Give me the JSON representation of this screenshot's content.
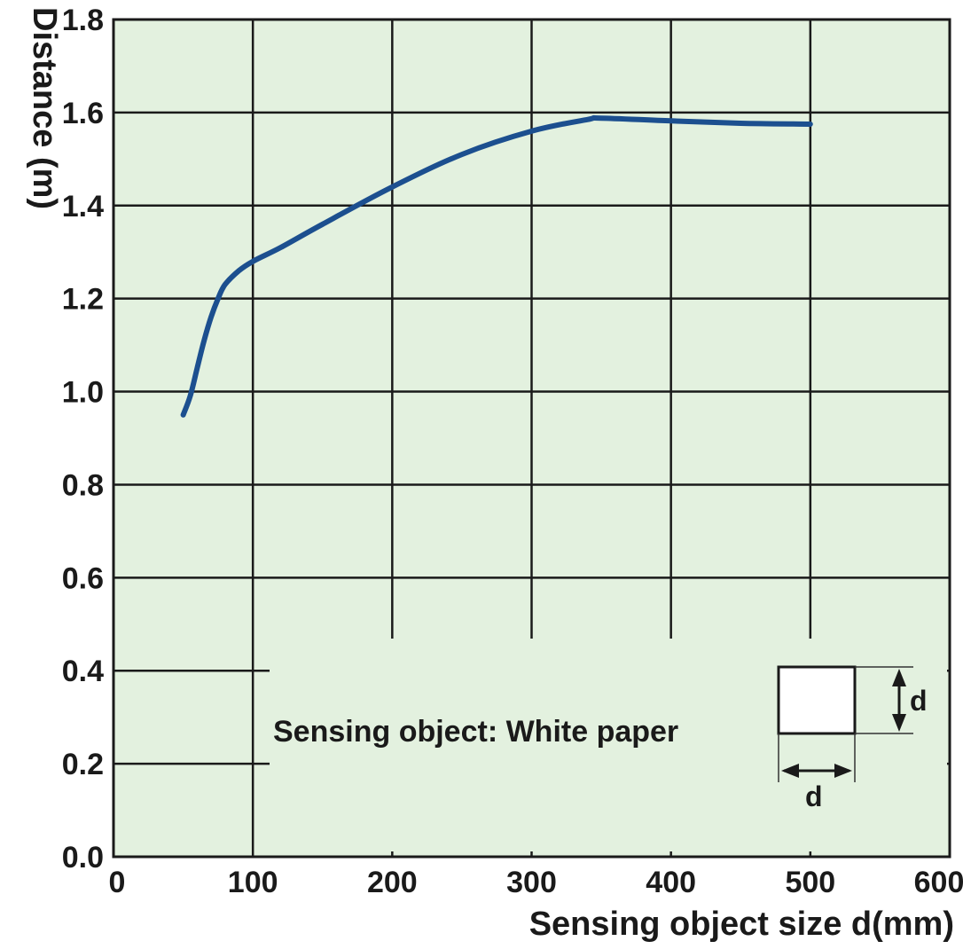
{
  "chart_data": {
    "type": "line",
    "xlabel": "Sensing object size d(mm)",
    "ylabel": "Distance (m)",
    "xlim": [
      0,
      600
    ],
    "ylim": [
      0,
      1.8
    ],
    "x_ticks": [
      "0",
      "100",
      "200",
      "300",
      "400",
      "500",
      "600"
    ],
    "y_ticks": [
      "0.0",
      "0.2",
      "0.4",
      "0.6",
      "0.8",
      "1.0",
      "1.2",
      "1.4",
      "1.6",
      "1.8"
    ],
    "grid": true,
    "background_color": "#e3f1df",
    "line_color": "#1c4f8f",
    "series": [
      {
        "x": [
          50,
          55,
          60,
          65,
          70,
          75,
          80,
          90,
          100,
          120,
          150,
          200,
          250,
          300,
          340,
          350,
          400,
          450,
          500
        ],
        "y": [
          0.95,
          0.99,
          1.05,
          1.11,
          1.16,
          1.2,
          1.23,
          1.26,
          1.28,
          1.31,
          1.36,
          1.44,
          1.51,
          1.56,
          1.585,
          1.588,
          1.582,
          1.577,
          1.575
        ]
      }
    ],
    "annotation": {
      "text": "Sensing object: White paper",
      "dimension_label": "d"
    }
  }
}
